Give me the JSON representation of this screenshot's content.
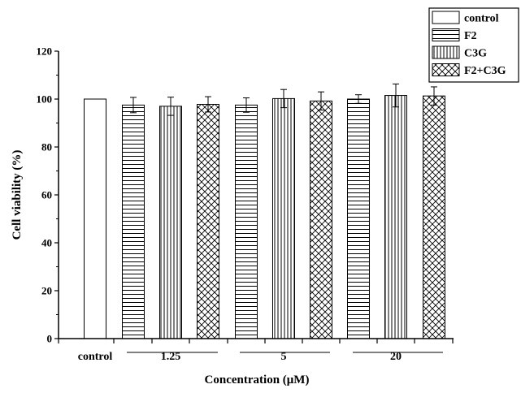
{
  "chart_data": {
    "type": "bar",
    "title": "",
    "xlabel": "Concentration (μM)",
    "ylabel": "Cell viability (%)",
    "ylim": [
      0,
      120
    ],
    "yticks": [
      0,
      20,
      40,
      60,
      80,
      100,
      120
    ],
    "grid": false,
    "legend_position": "top-right",
    "legend": [
      {
        "name": "control",
        "pattern": "plain"
      },
      {
        "name": "F2",
        "pattern": "horizontal-lines"
      },
      {
        "name": "C3G",
        "pattern": "vertical-lines"
      },
      {
        "name": "F2+C3G",
        "pattern": "crosshatch"
      }
    ],
    "groups": [
      "control",
      "1.25",
      "5",
      "20"
    ],
    "bars": [
      {
        "group": "control",
        "series": "control",
        "value": 100,
        "error": 0
      },
      {
        "group": "1.25",
        "series": "F2",
        "value": 97.5,
        "error": 3.2
      },
      {
        "group": "1.25",
        "series": "C3G",
        "value": 97.0,
        "error": 3.8
      },
      {
        "group": "1.25",
        "series": "F2+C3G",
        "value": 97.8,
        "error": 3.2
      },
      {
        "group": "5",
        "series": "F2",
        "value": 97.5,
        "error": 3.0
      },
      {
        "group": "5",
        "series": "C3G",
        "value": 100.2,
        "error": 3.8
      },
      {
        "group": "5",
        "series": "F2+C3G",
        "value": 99.2,
        "error": 3.8
      },
      {
        "group": "20",
        "series": "F2",
        "value": 100.0,
        "error": 1.8
      },
      {
        "group": "20",
        "series": "C3G",
        "value": 101.5,
        "error": 4.8
      },
      {
        "group": "20",
        "series": "F2+C3G",
        "value": 101.3,
        "error": 3.8
      }
    ]
  }
}
